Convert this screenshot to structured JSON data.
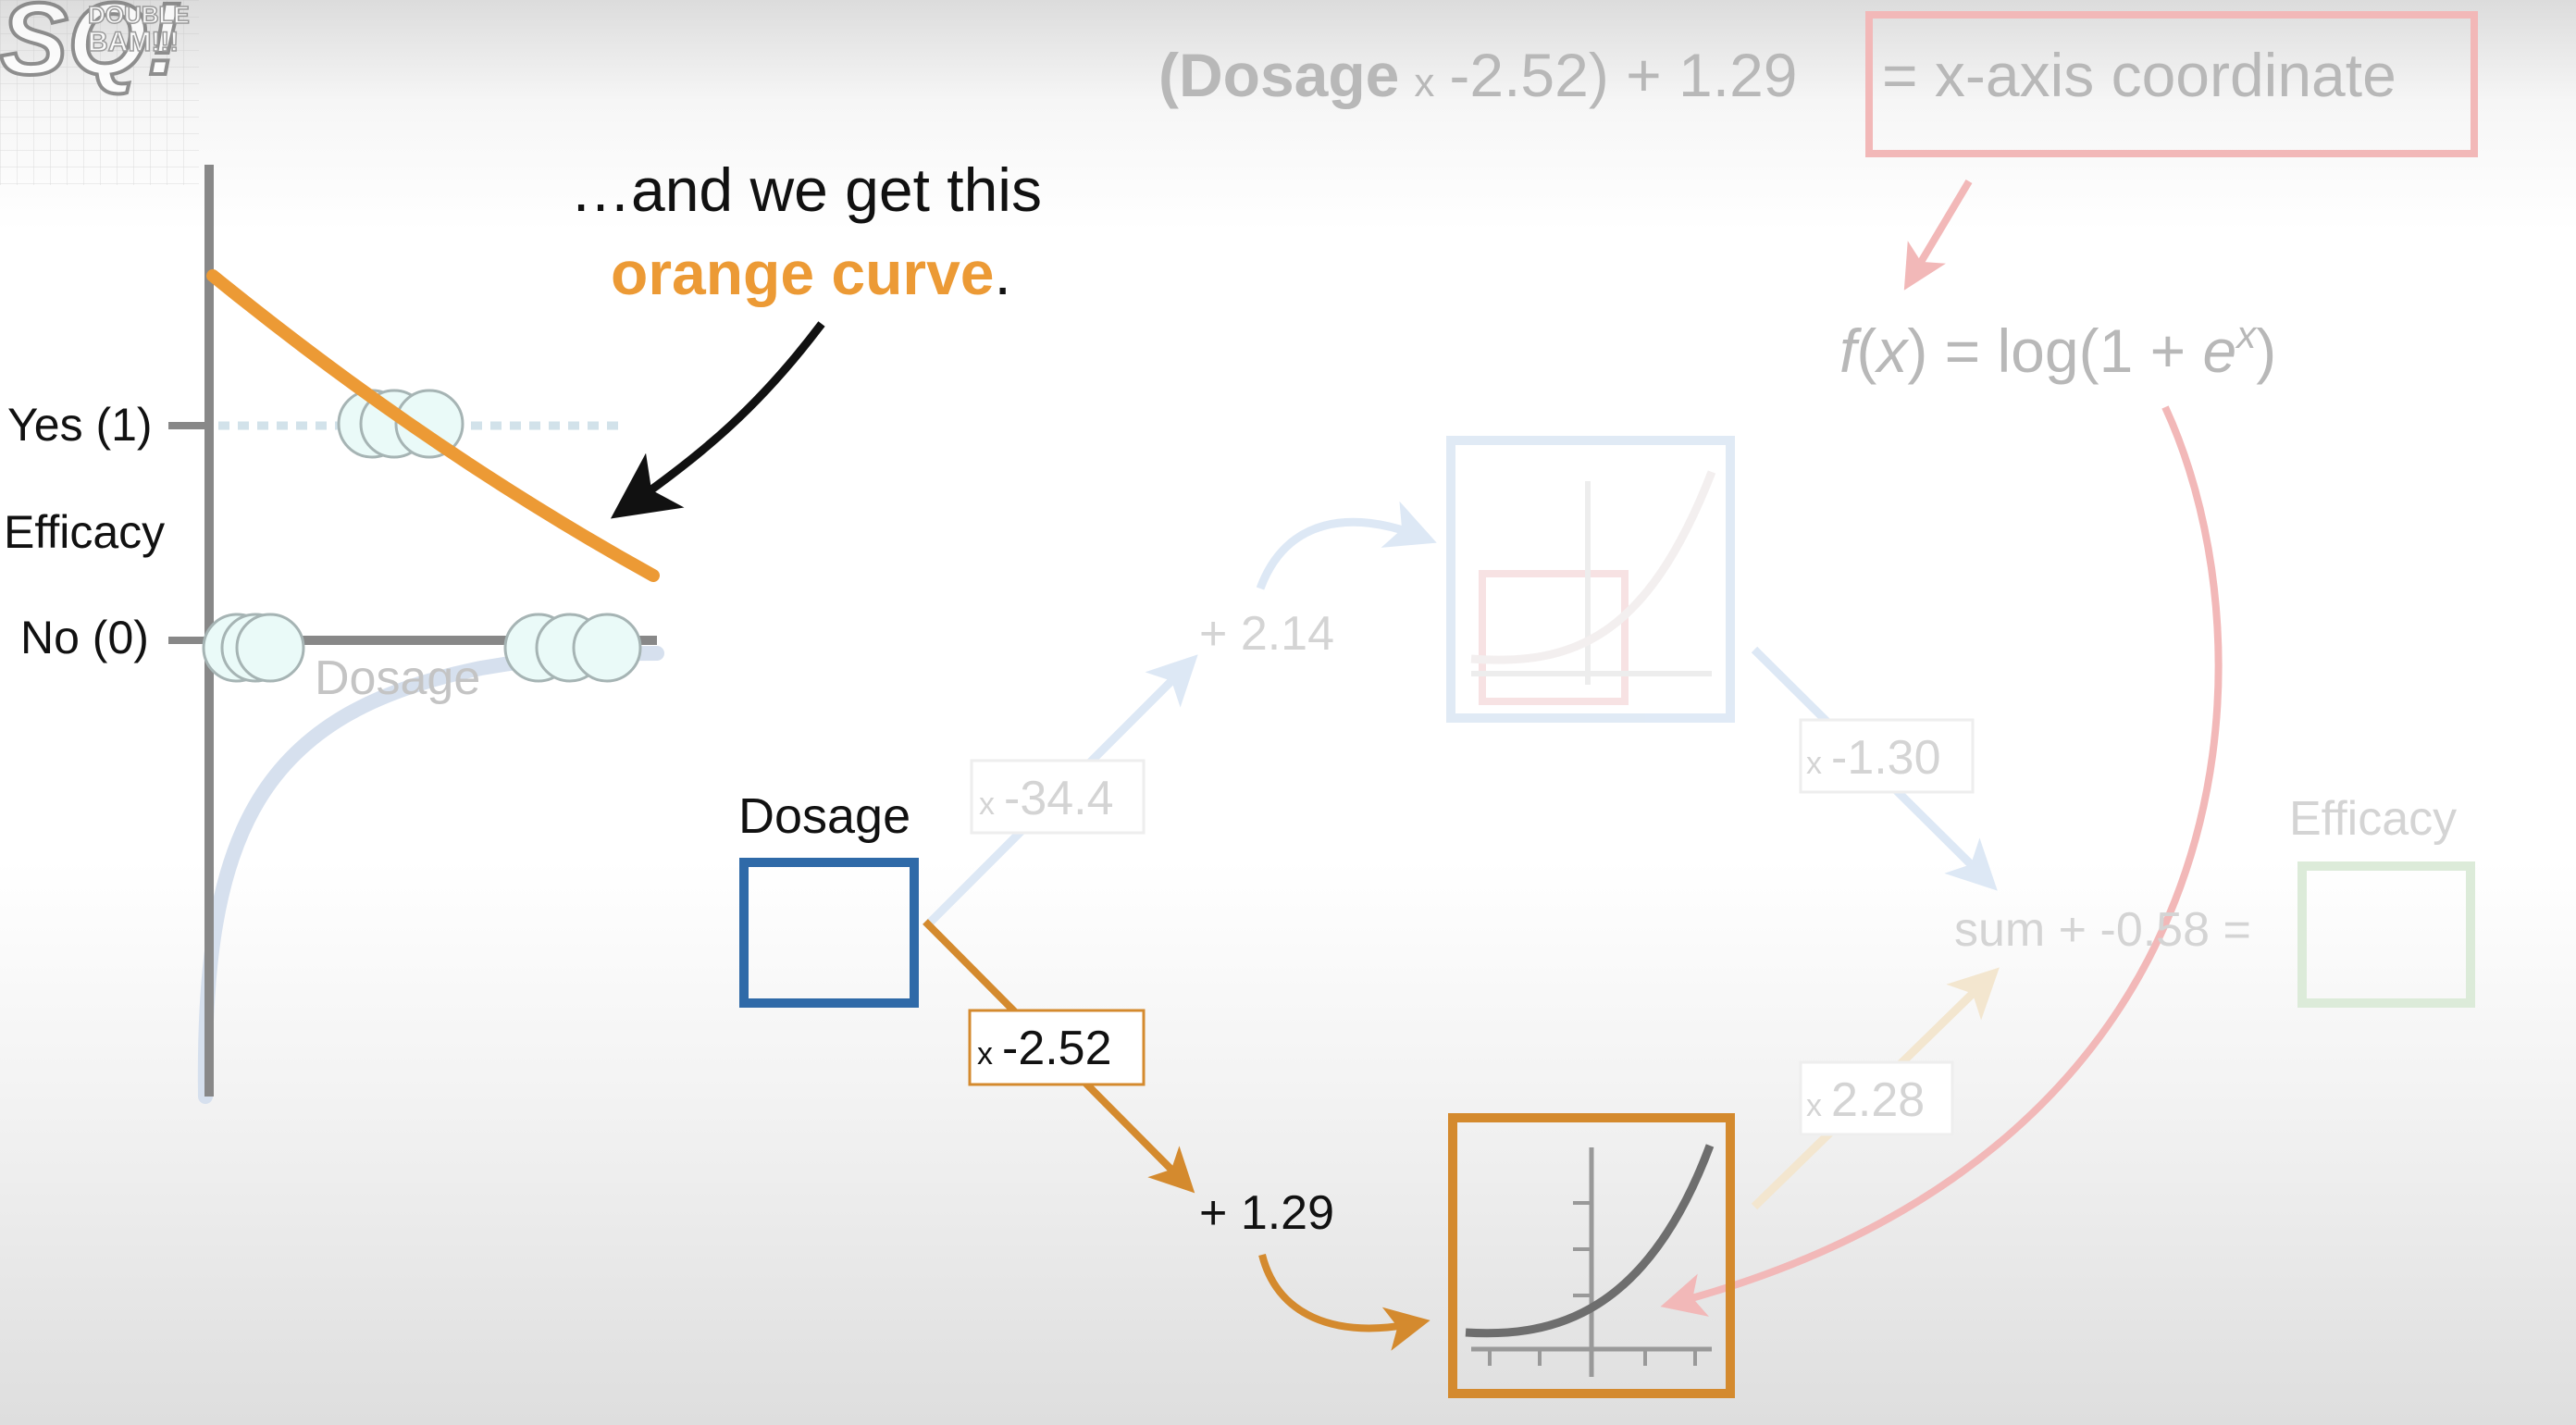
{
  "logo": {
    "letters": "SQ!",
    "small_text": "BAM!!!",
    "small_text_2": "DOUBLE"
  },
  "graph": {
    "yes_label": "Yes (1)",
    "no_label": "No (0)",
    "y_axis_label": "Efficacy",
    "x_axis_label": "Dosage"
  },
  "callout": {
    "line1": "…and we get this",
    "highlight": "orange curve",
    "period": "."
  },
  "formula": {
    "part_dosage": "(Dosage",
    "part_times": "x",
    "part_rest": "-2.52) + 1.29",
    "part_boxed": "= x-axis coordinate"
  },
  "softplus": {
    "f": "f",
    "open": "(",
    "x": "x",
    "close_eq": ") = log(1 + ",
    "e": "e",
    "exp": "x",
    "close": ")"
  },
  "network": {
    "input_label": "Dosage",
    "top_weight_x": "x",
    "top_weight": "-34.4",
    "top_bias": "+ 2.14",
    "bottom_weight_x": "x",
    "bottom_weight": "-2.52",
    "bottom_bias": "+ 1.29",
    "top_out_weight_x": "x",
    "top_out_weight": "-1.30",
    "bottom_out_weight_x": "x",
    "bottom_out_weight": "2.28",
    "sum_text": "sum + -0.58 =",
    "output_label": "Efficacy"
  },
  "colors": {
    "orange": "#ec9a35",
    "orange_dark": "#d48a2e",
    "blue": "#2f6aa8",
    "red_faded": "#f2b8b8",
    "green_faded": "#dcebd9",
    "blue_faded": "#dde8f5",
    "point_fill": "#eafaf8",
    "text": "#111111",
    "faded_text": "#b8b8b8"
  }
}
